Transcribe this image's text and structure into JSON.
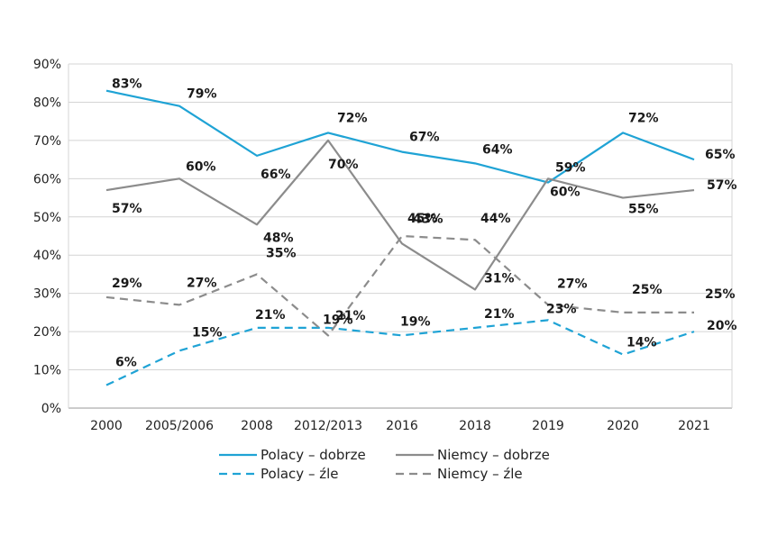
{
  "chart_data": {
    "type": "line",
    "categories": [
      "2000",
      "2005/2006",
      "2008",
      "2012/2013",
      "2016",
      "2018",
      "2019",
      "2020",
      "2021"
    ],
    "y_ticks": [
      "0%",
      "10%",
      "20%",
      "30%",
      "40%",
      "50%",
      "60%",
      "70%",
      "80%",
      "90%"
    ],
    "ylim": [
      0,
      90
    ],
    "grid": "horizontal",
    "legend_position": "bottom",
    "series": [
      {
        "name": "Polacy – dobrze",
        "color": "#1fa3d5",
        "dash": "solid",
        "values": [
          83,
          79,
          66,
          72,
          67,
          64,
          59,
          72,
          65
        ],
        "labels": [
          "83%",
          "79%",
          "66%",
          "72%",
          "67%",
          "64%",
          "59%",
          "72%",
          "65%"
        ]
      },
      {
        "name": "Niemcy – dobrze",
        "color": "#8c8c8c",
        "dash": "solid",
        "values": [
          57,
          60,
          48,
          70,
          43,
          31,
          60,
          55,
          57
        ],
        "labels": [
          "57%",
          "60%",
          "48%",
          "70%",
          "43%",
          "31%",
          "60%",
          "55%",
          "57%"
        ]
      },
      {
        "name": "Polacy – źle",
        "color": "#1fa3d5",
        "dash": "dashed",
        "values": [
          6,
          15,
          21,
          21,
          19,
          21,
          23,
          14,
          20
        ],
        "labels": [
          "6%",
          "15%",
          "21%",
          "21%",
          "19%",
          "21%",
          "23%",
          "14%",
          "20%"
        ]
      },
      {
        "name": "Niemcy – źle",
        "color": "#8c8c8c",
        "dash": "dashed",
        "values": [
          29,
          27,
          35,
          19,
          45,
          44,
          27,
          25,
          25
        ],
        "labels": [
          "29%",
          "27%",
          "35%",
          "19%",
          "45%",
          "44%",
          "27%",
          "25%",
          "25%"
        ]
      }
    ]
  }
}
